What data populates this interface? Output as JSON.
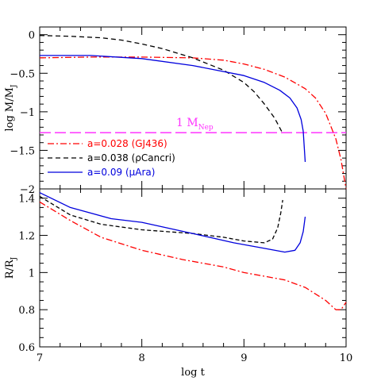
{
  "chart_data": [
    {
      "type": "line",
      "panel": "top",
      "xlabel": "",
      "ylabel_main": "log M/M",
      "ylabel_sub": "J",
      "xlim": [
        7,
        10
      ],
      "ylim": [
        -2,
        0.1
      ],
      "x_ticks": [
        7,
        8,
        9,
        10
      ],
      "y_ticks": [
        0,
        -0.5,
        -1,
        -1.5,
        -2
      ],
      "y_tick_labels": [
        "0",
        "−0.5",
        "−1",
        "−1.5",
        "−2"
      ],
      "hline": {
        "y": -1.27,
        "color": "#ff33ff",
        "label_main": "1 M",
        "label_sub": "Nep"
      },
      "legend_placement": "bottom-left",
      "series": [
        {
          "name": "a=0.028 (GJ436)",
          "color": "#ff0000",
          "dash": "8,3,2,3",
          "points": [
            [
              7.0,
              -0.3
            ],
            [
              7.5,
              -0.29
            ],
            [
              8.0,
              -0.29
            ],
            [
              8.5,
              -0.3
            ],
            [
              8.8,
              -0.33
            ],
            [
              9.0,
              -0.38
            ],
            [
              9.2,
              -0.45
            ],
            [
              9.4,
              -0.55
            ],
            [
              9.6,
              -0.7
            ],
            [
              9.7,
              -0.82
            ],
            [
              9.8,
              -1.02
            ],
            [
              9.9,
              -1.35
            ],
            [
              9.95,
              -1.62
            ],
            [
              10.0,
              -2.0
            ]
          ]
        },
        {
          "name": "a=0.038 (ρCancri)",
          "color": "#000000",
          "dash": "6,4",
          "points": [
            [
              7.0,
              -0.01
            ],
            [
              7.3,
              -0.02
            ],
            [
              7.6,
              -0.04
            ],
            [
              7.8,
              -0.07
            ],
            [
              8.0,
              -0.12
            ],
            [
              8.2,
              -0.18
            ],
            [
              8.5,
              -0.3
            ],
            [
              8.8,
              -0.46
            ],
            [
              9.0,
              -0.62
            ],
            [
              9.1,
              -0.74
            ],
            [
              9.2,
              -0.9
            ],
            [
              9.3,
              -1.08
            ],
            [
              9.38,
              -1.28
            ]
          ]
        },
        {
          "name": "a=0.09 (μAra)",
          "color": "#0000dd",
          "dash": "",
          "points": [
            [
              7.0,
              -0.27
            ],
            [
              7.5,
              -0.27
            ],
            [
              8.0,
              -0.31
            ],
            [
              8.5,
              -0.4
            ],
            [
              9.0,
              -0.53
            ],
            [
              9.2,
              -0.62
            ],
            [
              9.35,
              -0.72
            ],
            [
              9.45,
              -0.82
            ],
            [
              9.52,
              -0.95
            ],
            [
              9.56,
              -1.1
            ],
            [
              9.58,
              -1.25
            ],
            [
              9.6,
              -1.65
            ]
          ]
        }
      ]
    },
    {
      "type": "line",
      "panel": "bottom",
      "xlabel": "log t",
      "ylabel_main": "R/R",
      "ylabel_sub": "J",
      "xlim": [
        7,
        10
      ],
      "ylim": [
        0.6,
        1.45
      ],
      "x_ticks": [
        7,
        8,
        9,
        10
      ],
      "x_tick_labels": [
        "7",
        "8",
        "9",
        "10"
      ],
      "y_ticks": [
        0.6,
        0.8,
        1,
        1.2,
        1.4
      ],
      "y_tick_labels": [
        "0.6",
        "0.8",
        "1",
        "1.2",
        "1.4"
      ],
      "series": [
        {
          "name": "a=0.028 (GJ436)",
          "color": "#ff0000",
          "dash": "8,3,2,3",
          "points": [
            [
              7.0,
              1.38
            ],
            [
              7.3,
              1.28
            ],
            [
              7.6,
              1.19
            ],
            [
              8.0,
              1.12
            ],
            [
              8.4,
              1.07
            ],
            [
              8.8,
              1.03
            ],
            [
              9.0,
              1.0
            ],
            [
              9.2,
              0.98
            ],
            [
              9.4,
              0.96
            ],
            [
              9.6,
              0.92
            ],
            [
              9.8,
              0.85
            ],
            [
              9.9,
              0.8
            ],
            [
              9.95,
              0.8
            ],
            [
              10.0,
              0.84
            ]
          ]
        },
        {
          "name": "a=0.038 (ρCancri)",
          "color": "#000000",
          "dash": "5,3",
          "points": [
            [
              7.0,
              1.41
            ],
            [
              7.3,
              1.31
            ],
            [
              7.6,
              1.26
            ],
            [
              8.0,
              1.23
            ],
            [
              8.5,
              1.21
            ],
            [
              8.8,
              1.19
            ],
            [
              9.0,
              1.17
            ],
            [
              9.2,
              1.16
            ],
            [
              9.28,
              1.18
            ],
            [
              9.33,
              1.24
            ],
            [
              9.36,
              1.32
            ],
            [
              9.38,
              1.39
            ]
          ]
        },
        {
          "name": "a=0.09 (μAra)",
          "color": "#0000dd",
          "dash": "",
          "points": [
            [
              7.0,
              1.43
            ],
            [
              7.3,
              1.35
            ],
            [
              7.7,
              1.29
            ],
            [
              8.0,
              1.27
            ],
            [
              8.5,
              1.21
            ],
            [
              8.9,
              1.16
            ],
            [
              9.2,
              1.13
            ],
            [
              9.4,
              1.11
            ],
            [
              9.5,
              1.12
            ],
            [
              9.55,
              1.16
            ],
            [
              9.58,
              1.22
            ],
            [
              9.6,
              1.3
            ]
          ]
        }
      ]
    }
  ]
}
